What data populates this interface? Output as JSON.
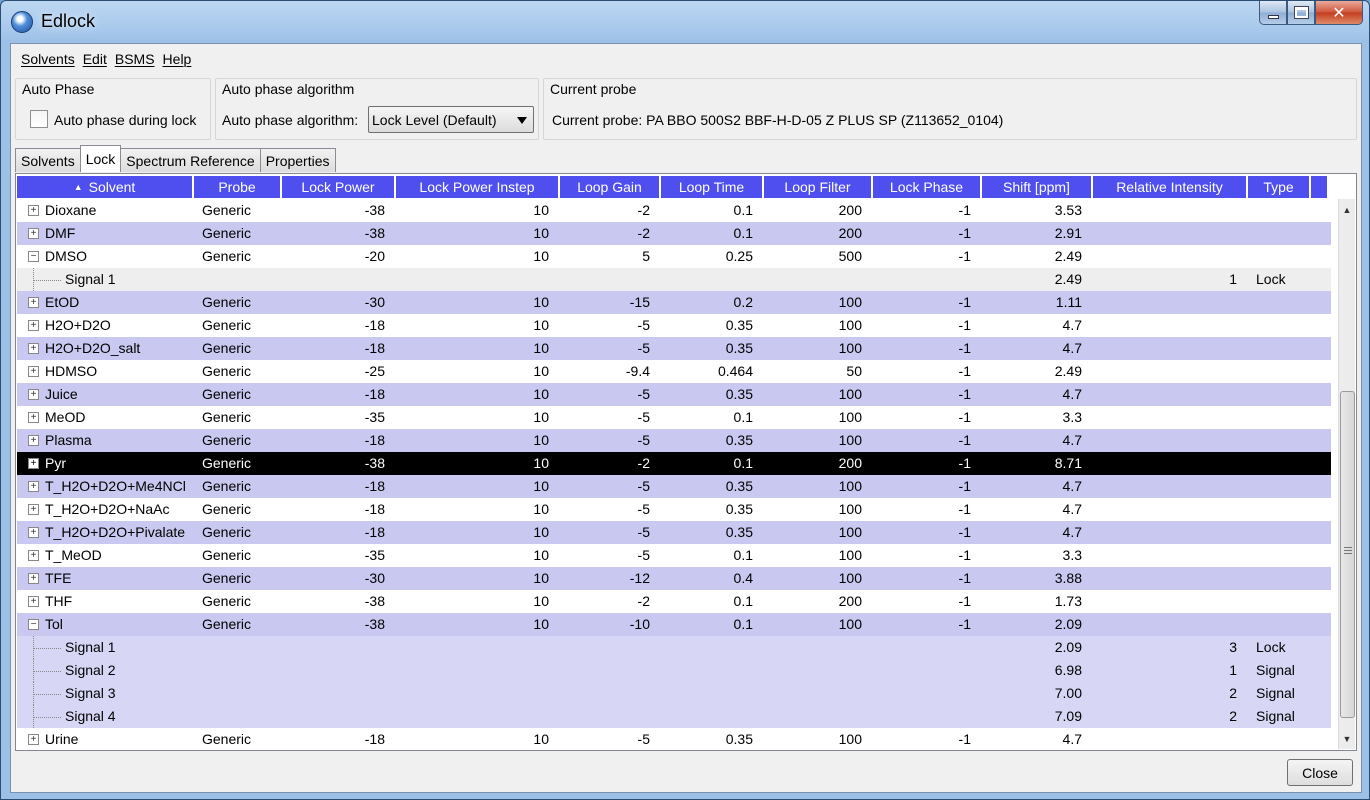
{
  "window": {
    "title": "Edlock"
  },
  "menu": [
    "Solvents",
    "Edit",
    "BSMS",
    "Help"
  ],
  "auto_phase": {
    "group_title": "Auto Phase",
    "checkbox_label": "Auto phase during lock",
    "checked": false
  },
  "algorithm": {
    "group_title": "Auto phase algorithm",
    "label": "Auto phase algorithm:",
    "selected": "Lock Level (Default)"
  },
  "probe": {
    "group_title": "Current probe",
    "text": "Current probe: PA BBO 500S2 BBF-H-D-05 Z PLUS SP (Z113652_0104)"
  },
  "tabs": [
    "Solvents",
    "Lock",
    "Spectrum Reference",
    "Properties"
  ],
  "active_tab": "Lock",
  "columns": [
    "Solvent",
    "Probe",
    "Lock Power",
    "Lock Power Instep",
    "Loop Gain",
    "Loop Time",
    "Loop Filter",
    "Lock Phase",
    "Shift [ppm]",
    "Relative Intensity",
    "Type"
  ],
  "rows": [
    {
      "kind": "parent",
      "expanded": false,
      "solvent": "Dioxane",
      "probe": "Generic",
      "power": "-38",
      "instep": "10",
      "gain": "-2",
      "time": "0.1",
      "filter": "200",
      "phase": "-1",
      "shift": "3.53"
    },
    {
      "kind": "parent",
      "expanded": false,
      "solvent": "DMF",
      "probe": "Generic",
      "power": "-38",
      "instep": "10",
      "gain": "-2",
      "time": "0.1",
      "filter": "200",
      "phase": "-1",
      "shift": "2.91"
    },
    {
      "kind": "parent",
      "expanded": true,
      "solvent": "DMSO",
      "probe": "Generic",
      "power": "-20",
      "instep": "10",
      "gain": "5",
      "time": "0.25",
      "filter": "500",
      "phase": "-1",
      "shift": "2.49"
    },
    {
      "kind": "child",
      "solvent": "Signal 1",
      "shift": "2.49",
      "rel": "1",
      "type": "Lock"
    },
    {
      "kind": "parent",
      "expanded": false,
      "solvent": "EtOD",
      "probe": "Generic",
      "power": "-30",
      "instep": "10",
      "gain": "-15",
      "time": "0.2",
      "filter": "100",
      "phase": "-1",
      "shift": "1.11"
    },
    {
      "kind": "parent",
      "expanded": false,
      "solvent": "H2O+D2O",
      "probe": "Generic",
      "power": "-18",
      "instep": "10",
      "gain": "-5",
      "time": "0.35",
      "filter": "100",
      "phase": "-1",
      "shift": "4.7"
    },
    {
      "kind": "parent",
      "expanded": false,
      "solvent": "H2O+D2O_salt",
      "probe": "Generic",
      "power": "-18",
      "instep": "10",
      "gain": "-5",
      "time": "0.35",
      "filter": "100",
      "phase": "-1",
      "shift": "4.7"
    },
    {
      "kind": "parent",
      "expanded": false,
      "solvent": "HDMSO",
      "probe": "Generic",
      "power": "-25",
      "instep": "10",
      "gain": "-9.4",
      "time": "0.464",
      "filter": "50",
      "phase": "-1",
      "shift": "2.49"
    },
    {
      "kind": "parent",
      "expanded": false,
      "solvent": "Juice",
      "probe": "Generic",
      "power": "-18",
      "instep": "10",
      "gain": "-5",
      "time": "0.35",
      "filter": "100",
      "phase": "-1",
      "shift": "4.7"
    },
    {
      "kind": "parent",
      "expanded": false,
      "solvent": "MeOD",
      "probe": "Generic",
      "power": "-35",
      "instep": "10",
      "gain": "-5",
      "time": "0.1",
      "filter": "100",
      "phase": "-1",
      "shift": "3.3"
    },
    {
      "kind": "parent",
      "expanded": false,
      "solvent": "Plasma",
      "probe": "Generic",
      "power": "-18",
      "instep": "10",
      "gain": "-5",
      "time": "0.35",
      "filter": "100",
      "phase": "-1",
      "shift": "4.7"
    },
    {
      "kind": "parent",
      "expanded": false,
      "selected": true,
      "solvent": "Pyr",
      "probe": "Generic",
      "power": "-38",
      "instep": "10",
      "gain": "-2",
      "time": "0.1",
      "filter": "200",
      "phase": "-1",
      "shift": "8.71"
    },
    {
      "kind": "parent",
      "expanded": false,
      "solvent": "T_H2O+D2O+Me4NCl",
      "probe": "Generic",
      "power": "-18",
      "instep": "10",
      "gain": "-5",
      "time": "0.35",
      "filter": "100",
      "phase": "-1",
      "shift": "4.7"
    },
    {
      "kind": "parent",
      "expanded": false,
      "solvent": "T_H2O+D2O+NaAc",
      "probe": "Generic",
      "power": "-18",
      "instep": "10",
      "gain": "-5",
      "time": "0.35",
      "filter": "100",
      "phase": "-1",
      "shift": "4.7"
    },
    {
      "kind": "parent",
      "expanded": false,
      "solvent": "T_H2O+D2O+Pivalate",
      "probe": "Generic",
      "power": "-18",
      "instep": "10",
      "gain": "-5",
      "time": "0.35",
      "filter": "100",
      "phase": "-1",
      "shift": "4.7"
    },
    {
      "kind": "parent",
      "expanded": false,
      "solvent": "T_MeOD",
      "probe": "Generic",
      "power": "-35",
      "instep": "10",
      "gain": "-5",
      "time": "0.1",
      "filter": "100",
      "phase": "-1",
      "shift": "3.3"
    },
    {
      "kind": "parent",
      "expanded": false,
      "solvent": "TFE",
      "probe": "Generic",
      "power": "-30",
      "instep": "10",
      "gain": "-12",
      "time": "0.4",
      "filter": "100",
      "phase": "-1",
      "shift": "3.88"
    },
    {
      "kind": "parent",
      "expanded": false,
      "solvent": "THF",
      "probe": "Generic",
      "power": "-38",
      "instep": "10",
      "gain": "-2",
      "time": "0.1",
      "filter": "200",
      "phase": "-1",
      "shift": "1.73"
    },
    {
      "kind": "parent",
      "expanded": true,
      "solvent": "Tol",
      "probe": "Generic",
      "power": "-38",
      "instep": "10",
      "gain": "-10",
      "time": "0.1",
      "filter": "100",
      "phase": "-1",
      "shift": "2.09"
    },
    {
      "kind": "child",
      "solvent": "Signal 1",
      "shift": "2.09",
      "rel": "3",
      "type": "Lock"
    },
    {
      "kind": "child",
      "solvent": "Signal 2",
      "shift": "6.98",
      "rel": "1",
      "type": "Signal"
    },
    {
      "kind": "child",
      "solvent": "Signal 3",
      "shift": "7.00",
      "rel": "2",
      "type": "Signal"
    },
    {
      "kind": "child",
      "solvent": "Signal 4",
      "shift": "7.09",
      "rel": "2",
      "type": "Signal"
    },
    {
      "kind": "parent",
      "expanded": false,
      "solvent": "Urine",
      "probe": "Generic",
      "power": "-18",
      "instep": "10",
      "gain": "-5",
      "time": "0.35",
      "filter": "100",
      "phase": "-1",
      "shift": "4.7"
    }
  ],
  "close_button": "Close"
}
